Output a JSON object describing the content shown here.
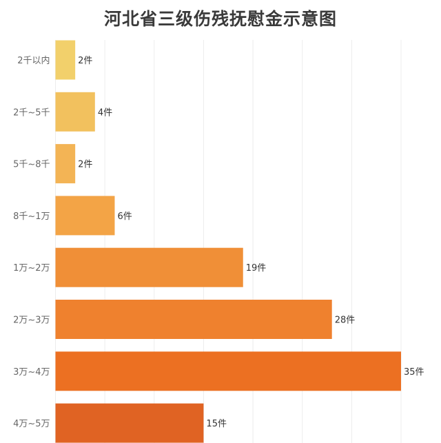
{
  "chart_data": {
    "type": "bar",
    "orientation": "horizontal",
    "title": "河北省三级伤残抚慰金示意图",
    "categories": [
      "2千以内",
      "2千~5千",
      "5千~8千",
      "8千~1万",
      "1万~2万",
      "2万~3万",
      "3万~4万",
      "4万~5万"
    ],
    "values": [
      2,
      4,
      2,
      6,
      19,
      28,
      35,
      15
    ],
    "data_labels": [
      "2件",
      "4件",
      "2件",
      "6件",
      "19件",
      "28件",
      "35件",
      "15件"
    ],
    "colors": [
      "#f2d06b",
      "#f2c15e",
      "#f3b455",
      "#f3a446",
      "#f08f37",
      "#ef812e",
      "#ec7022",
      "#e06323"
    ],
    "xlim": [
      0,
      35
    ],
    "grid": true,
    "xlabel": "",
    "ylabel": ""
  }
}
